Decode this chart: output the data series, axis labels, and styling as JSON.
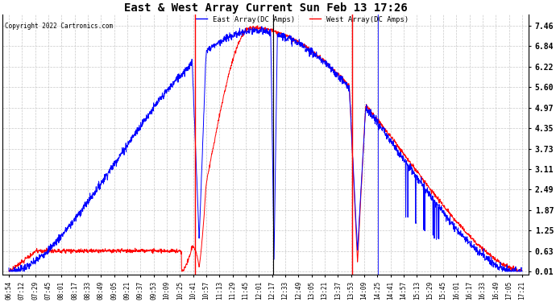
{
  "title": "East & West Array Current Sun Feb 13 17:26",
  "copyright": "Copyright 2022 Cartronics.com",
  "legend_east": "East Array(DC Amps)",
  "legend_west": "West Array(DC Amps)",
  "east_color": "blue",
  "west_color": "red",
  "background_color": "#FFFFFF",
  "grid_color": "#BBBBBB",
  "yticks": [
    0.01,
    0.63,
    1.25,
    1.87,
    2.49,
    3.11,
    3.73,
    4.35,
    4.97,
    5.6,
    6.22,
    6.84,
    7.46
  ],
  "ylim": [
    -0.1,
    7.8
  ],
  "xtick_labels": [
    "06:54",
    "07:12",
    "07:29",
    "07:45",
    "08:01",
    "08:17",
    "08:33",
    "08:49",
    "09:05",
    "09:21",
    "09:37",
    "09:53",
    "10:09",
    "10:25",
    "10:41",
    "10:57",
    "11:13",
    "11:29",
    "11:45",
    "12:01",
    "12:17",
    "12:33",
    "12:49",
    "13:05",
    "13:21",
    "13:37",
    "13:53",
    "14:09",
    "14:25",
    "14:41",
    "14:57",
    "15:13",
    "15:29",
    "15:45",
    "16:01",
    "16:17",
    "16:33",
    "16:49",
    "17:05",
    "17:21"
  ]
}
